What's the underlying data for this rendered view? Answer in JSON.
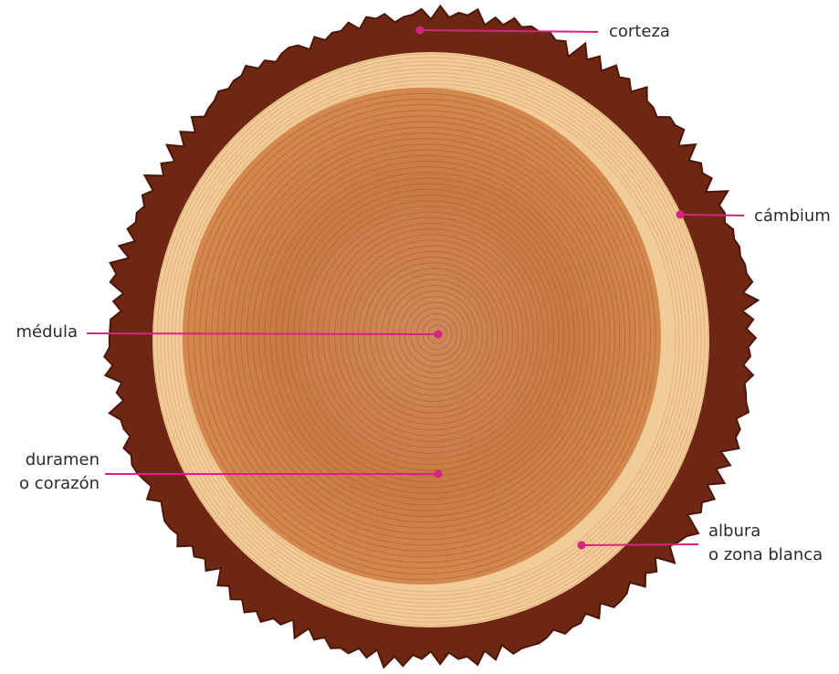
{
  "labels": [
    [
      "corteza"
    ],
    [
      "cámbium"
    ],
    [
      "médula"
    ],
    [
      "duramen",
      "o corazón"
    ],
    [
      "albura",
      "o zona blanca"
    ]
  ]
}
